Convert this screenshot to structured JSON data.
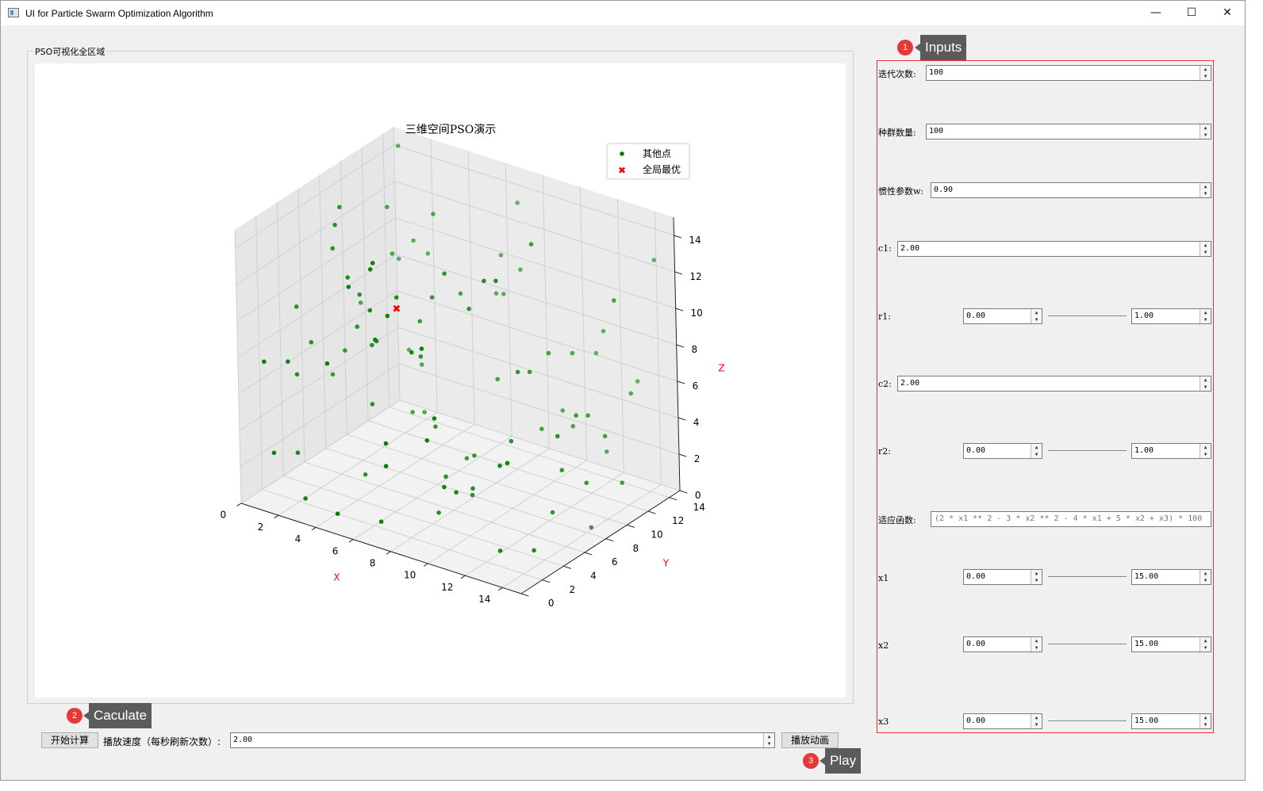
{
  "window": {
    "title": "UI for Particle Swarm Optimization Algorithm",
    "minimize_glyph": "—",
    "maximize_glyph": "☐",
    "close_glyph": "✕"
  },
  "group": {
    "title": "PSO可视化全区域"
  },
  "inputs": {
    "iterations": {
      "label": "迭代次数:",
      "value": "100"
    },
    "population": {
      "label": "种群数量:",
      "value": "100"
    },
    "inertia": {
      "label": "惯性参数w:",
      "value": "0.90"
    },
    "c1": {
      "label": "c1:",
      "value": "2.00"
    },
    "r1": {
      "label": "r1:",
      "min": "0.00",
      "max": "1.00"
    },
    "c2": {
      "label": "c2:",
      "value": "2.00"
    },
    "r2": {
      "label": "r2:",
      "min": "0.00",
      "max": "1.00"
    },
    "fitness": {
      "label": "适应函数:",
      "placeholder": "(2 * x1 ** 2 - 3 * x2 ** 2 - 4 * x1 + 5 * x2 + x3) * 100"
    },
    "x1": {
      "label": "x1",
      "min": "0.00",
      "max": "15.00"
    },
    "x2": {
      "label": "x2",
      "min": "0.00",
      "max": "15.00"
    },
    "x3": {
      "label": "x3",
      "min": "0.00",
      "max": "15.00"
    }
  },
  "bottom": {
    "start_button": "开始计算",
    "speed_label": "播放速度（每秒刷新次数）:",
    "speed_value": "2.00",
    "play_button": "播放动画"
  },
  "callouts": [
    {
      "num": "1",
      "text": "Inputs"
    },
    {
      "num": "2",
      "text": "Caculate"
    },
    {
      "num": "3",
      "text": "Play"
    }
  ],
  "chart_data": {
    "type": "scatter",
    "title": "三维空间PSO演示",
    "xlabel": "X",
    "ylabel": "Y",
    "zlabel": "Z",
    "xlim": [
      0,
      15
    ],
    "ylim": [
      0,
      15
    ],
    "zlim": [
      0,
      15
    ],
    "ticks": {
      "x": [
        "0",
        "2",
        "4",
        "6",
        "8",
        "10",
        "12",
        "14"
      ],
      "y": [
        "0",
        "2",
        "4",
        "6",
        "8",
        "10",
        "12",
        "14"
      ],
      "z": [
        "0",
        "2",
        "4",
        "6",
        "8",
        "10",
        "12",
        "14"
      ]
    },
    "grid": true,
    "legend_position": "top-right",
    "axis_label_color": "#ff0000",
    "series": [
      {
        "name": "其他点",
        "color": "#008000",
        "marker": "circle",
        "count": 100
      },
      {
        "name": "全局最优",
        "color": "#ff0000",
        "marker": "x",
        "count": 1
      }
    ]
  }
}
